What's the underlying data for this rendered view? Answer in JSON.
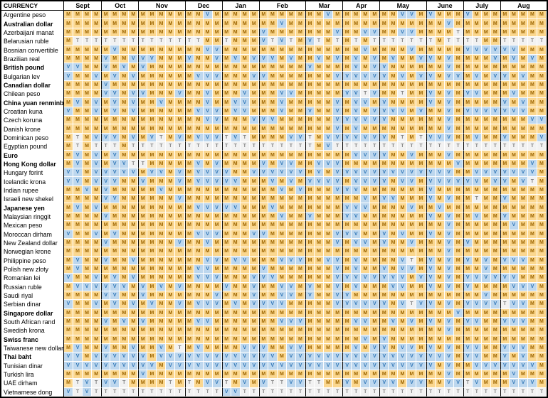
{
  "table": {
    "corner_label": "CURRENCY",
    "months": [
      {
        "label": "Sept",
        "weeks": 4
      },
      {
        "label": "Oct",
        "weeks": 4
      },
      {
        "label": "Nov",
        "weeks": 5
      },
      {
        "label": "Dec",
        "weeks": 4
      },
      {
        "label": "Jan",
        "weeks": 4
      },
      {
        "label": "Feb",
        "weeks": 5
      },
      {
        "label": "Mar",
        "weeks": 4
      },
      {
        "label": "Apr",
        "weeks": 4
      },
      {
        "label": "May",
        "weeks": 5
      },
      {
        "label": "June",
        "weeks": 4
      },
      {
        "label": "July",
        "weeks": 4
      },
      {
        "label": "Aug",
        "weeks": 5
      }
    ],
    "cell_styles": {
      "M": {
        "bg": "#FBD78F",
        "fg": "#9C6500"
      },
      "V": {
        "bg": "#BDD7EE",
        "fg": "#2E75B6"
      },
      "T": {
        "bg": "#F2F2F2",
        "fg": "#808080"
      }
    },
    "border_color": "#000000",
    "gridline_color": "#FFFFFF",
    "rows": [
      {
        "currency": "Argentine peso",
        "bold": false,
        "cells": "MMMM MMMM MMMMM MMVM MMMM MMMMM MMVM MMMM MMVVM VMMM VMMM MMMMM"
      },
      {
        "currency": "Australian dollar",
        "bold": true,
        "cells": "MMMM MMMM MMMMM MMMM MMMM MMVMM MMMM MMMM MMMMM MMVM MMMM MMMMM"
      },
      {
        "currency": "Azerbaijani manat",
        "bold": false,
        "cells": "MMMM MMMM MMMMM MMMM MMMM VMMMM MMMV MMVV MMVVM MMMT MMMM MMMMM"
      },
      {
        "currency": "Belarusian ruble",
        "bold": false,
        "cells": "MTTT TTTT TTTTT TTMM TMMM VTVTM VTMT MTMT TTTTT TMTT TTMM TTTTT"
      },
      {
        "currency": "Bosnian convertible",
        "bold": false,
        "cells": "MMMM MVMM MMMMM MMVV MMMM MMMMM MMMM MMVM MMMVM MMMM VVVV VVMMM"
      },
      {
        "currency": "Brazilian real",
        "bold": false,
        "cells": "MMMM VMMV VVMMM VMMV MVMV VVMVM MVMV MVMV MVMMV VMVM MMMV MVMVM"
      },
      {
        "currency": "British pound",
        "bold": true,
        "cells": "VVMM VMVM VMMMM MMMM MMMM MMMMM VMMM MVMV VMMMM MMVM MMMM MMMMM"
      },
      {
        "currency": "Bulgarian lev",
        "bold": false,
        "cells": "VMMV MVMV MMMMM MVVV MMMV VMMMM MMMV VVVV VMVMV VMVV MVMV VMVMM"
      },
      {
        "currency": "Canadian dollar",
        "bold": true,
        "cells": "MMMM VMMM MMMMM MMMM MMMM MMMMM MMMM MMMM MMMMM MMMM MMMM MMMMM"
      },
      {
        "currency": "Chilean peso",
        "bold": false,
        "cells": "MMMM VVMV VMMMV MMVM MMVM MMVVM MMMM VVTV MMTMM VMVM VVMM MVMMM"
      },
      {
        "currency": "China yuan renminbi",
        "bold": true,
        "cells": "MVMV MVMV MMVMM MMVM MVVM MMVMM MMMV MVVM VMMMM VMVM MMMM VMVMM"
      },
      {
        "currency": "Croatian kuna",
        "bold": false,
        "cells": "VMMV MVMV MMMMM MVVV MVVM MMVMM VMMV MVMV VVVMV MMVM VVVV VVVMM"
      },
      {
        "currency": "Czech koruna",
        "bold": false,
        "cells": "MMMM MMMM MMMMM MMVV MMMV VVMMM MMMV VVVV VMMMM MMVM MMMM MMMVV"
      },
      {
        "currency": "Danish krone",
        "bold": false,
        "cells": "MMMM MMMM MMMMM MMMM MMMM MMMMM MMMV MVMM MMMMM MMVM MMMM MMMMM"
      },
      {
        "currency": "Dominican peso",
        "bold": false,
        "cells": "MTMV VVMV MVTMV MVVV TVTM MMMVV TMVV VVVV VMTMT VVVM MVMM VMMMV"
      },
      {
        "currency": "Egyptian pound",
        "bold": false,
        "cells": "MTMT TTMT TTTTT TTTT TTTT TTTTT TMVT TTTT TTTTT TTTT TTTT TTTTT"
      },
      {
        "currency": "Euro",
        "bold": true,
        "cells": "MVMV MVMM MMMMM MMMM MMMM MMMMM MMMM MVVV VMMVM MMVM MMMM MMMMM"
      },
      {
        "currency": "Hong Kong dollar",
        "bold": true,
        "cells": "MVMV MVVT TMMMM MVMV MMMM VMVVM MVVV MMMM MMMMM MMMV MMMM MMMVM"
      },
      {
        "currency": "Hungary forint",
        "bold": false,
        "cells": "VVMV VVVV MVVMV MVVV VMMV VVVVV MVMV VVVV VVVVV VVVM MVVV VVVVM"
      },
      {
        "currency": "Icelandic krona",
        "bold": false,
        "cells": "VVMV VVMM VMMMV MVVV VVMM MVMVM VVVV MVVV VMVVM VVVV VVMV VMVTM"
      },
      {
        "currency": "Indian rupee",
        "bold": false,
        "cells": "MMVM VMMM MMVMM MMMM MMMM MMVMV MMMV VVMM MMMMM VMMM MMMM MMMMM"
      },
      {
        "currency": "Israeli new shekel",
        "bold": false,
        "cells": "MMMM VVMM MMMMV MMMM MMMM MMMMM MMMM MMVM VVMMM VMVM MTMM VMMMM"
      },
      {
        "currency": "Japanese yen",
        "bold": true,
        "cells": "MVMV MMMM MMMMM MVVV VVMM MVMMM MMMM VVVM MMMVM MVMM MMMM MMMMM"
      },
      {
        "currency": "Malaysian ringgit",
        "bold": false,
        "cells": "MMMM VMMM MMMMM MMMM MMMM MMVMM VMMM VVMM MMMMM VMVM MVMM VMMMM"
      },
      {
        "currency": "Mexican peso",
        "bold": false,
        "cells": "MMMM MMMM MMMMM MMMM MMMM MMMMM MMMM MMMM MMMMM MMVM MMMM MVMMM"
      },
      {
        "currency": "Moroccan dirham",
        "bold": false,
        "cells": "VMMV MVMM MMMMM MVVV MMMV VMMMM MMMV VVMM VMVMM VMVM MMMM MMMMM"
      },
      {
        "currency": "New Zealand dollar",
        "bold": false,
        "cells": "MMMM VMMM MMMMV MMVM MMMM MMMMM MMMV MVVM VMMVM MMVM VMMM MMMMM"
      },
      {
        "currency": "Norwegian krone",
        "bold": false,
        "cells": "MMMM MMMM MMMMM MMMM MMMM MMMMM MMMM MMMM MMMMM MMVM MMMM MMMMM"
      },
      {
        "currency": "Philippine peso",
        "bold": false,
        "cells": "MVMM VMMV MMMMM MMVV MVVM MMVVV MMVV MVMM MMVTM VMVM VMVM VVVMM"
      },
      {
        "currency": "Polish new zloty",
        "bold": false,
        "cells": "MVMM MMMM MMMMM MVVM MMMM VMMMM MMMV MVMM VMVVM VMVM MMVM MMMMM"
      },
      {
        "currency": "Romanian lei",
        "bold": false,
        "cells": "VMMV MVMV MMMMM MVVV MMMV VVMMM MMMV VVVV VVVMV VMVM VVVV VVMMM"
      },
      {
        "currency": "Russian ruble",
        "bold": false,
        "cells": "MVVV VVVM VMVMV MMMM VMMV MMVVM VMMV MVMM MVVMM VMVM VMMM MVVVM"
      },
      {
        "currency": "Saudi riyal",
        "bold": false,
        "cells": "MMMM VVMM VMMMM MMMV MMMV MMVVM VMMV VMMM MMMMM MMMM MMVM MMMMM"
      },
      {
        "currency": "Serbian dinar",
        "bold": false,
        "cells": "VMMV MVMV MVMMV MVVV MVMV VVVMM MMMV VVVV VMVTV VMVM VVVV TVVMM"
      },
      {
        "currency": "Singapore dollar",
        "bold": true,
        "cells": "MMMM MMMM MMMMM MMMM MMMM MMMMM MMMM MMMM MMMMM MMMV MMMM MMMMM"
      },
      {
        "currency": "South African rand",
        "bold": false,
        "cells": "MMMM VMVM VMMMM MVVM MMMM MMVVV MMMM MVVM MVMVM VMVM VVMM VVVMM"
      },
      {
        "currency": "Swedish krona",
        "bold": false,
        "cells": "MMMM MMMM MMMMM MMMM MMMM MMMMM MMMM MMMM MMMMM MMVM MMMM MMMMM"
      },
      {
        "currency": "Swiss franc",
        "bold": true,
        "cells": "MMMM MMMM MMMMM MMMM MMMM MMMMM MMMM MMVM VMMMM MMMM MMMM MMMMM"
      },
      {
        "currency": "Taiwanese new dollar",
        "bold": false,
        "cells": "MVMM VMMV MMVMT MVMM MMVV VMMVV MMMM MVMV VMVVM VMVM VVMM VVVMM"
      },
      {
        "currency": "Thai baht",
        "bold": true,
        "cells": "VVMV VVVV VMVVV VVVV VVVV VVMVV VVVV VVVV VVVVV VVVM VVMM VMVMM"
      },
      {
        "currency": "Tunisian dinar",
        "bold": false,
        "cells": "VVVV VVVV VVMVV VVVV VVVV VVVVV VVVV VVVV VVVVV VMVM MVVV VVVVM"
      },
      {
        "currency": "Turkish lira",
        "bold": false,
        "cells": "MMMM MMMM VMMMM MMMM MMMM MMMMM MMMM MMMM MMMMM MMVM MMMM MVMMM"
      },
      {
        "currency": "UAE dirham",
        "bold": false,
        "cells": "MTVT VVTM MMMTM TMVV TMVM VTTVV TTMM VMVV VVMVV MMVV TVMM MVVVM"
      },
      {
        "currency": "Vietnamese dong",
        "bold": false,
        "cells": "VTVT TTTT TTTTT TTTT VVTT TTTTT TTTT TTTT TTTTT TTTT TTTT TTTTT"
      }
    ]
  }
}
